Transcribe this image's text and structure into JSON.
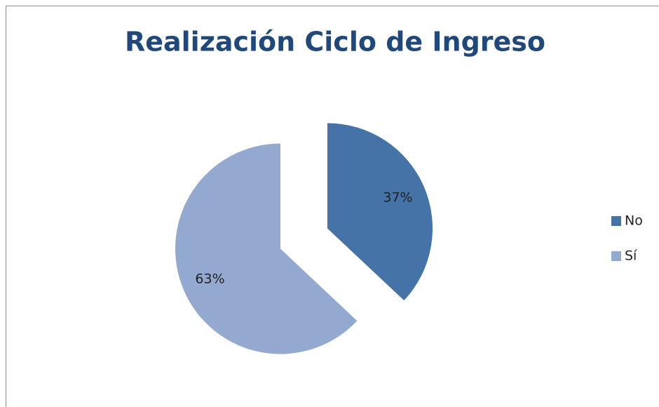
{
  "chart_data": {
    "type": "pie",
    "title": "Realización Ciclo de Ingreso",
    "categories": [
      "No",
      "Sí"
    ],
    "values": [
      37,
      63
    ],
    "value_labels": [
      "37%",
      "63%"
    ],
    "colors": [
      "#4572a7",
      "#93a9cf"
    ],
    "legend": "right"
  }
}
